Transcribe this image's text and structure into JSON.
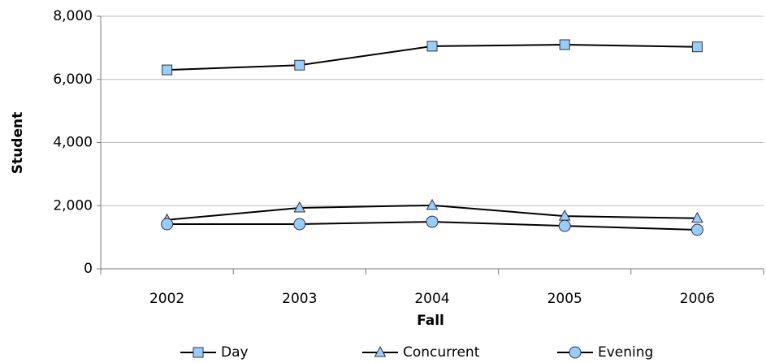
{
  "chart_data": {
    "type": "line",
    "x_label": "Fall",
    "y_label": "Student",
    "categories": [
      "2002",
      "2003",
      "2004",
      "2005",
      "2006"
    ],
    "series": [
      {
        "name": "Day",
        "color": "#99ccff",
        "marker": "square",
        "values": [
          6300,
          6450,
          7050,
          7100,
          7030
        ]
      },
      {
        "name": "Concurrent",
        "color": "#99ccff",
        "marker": "triangle",
        "values": [
          1550,
          1930,
          2010,
          1670,
          1600
        ]
      },
      {
        "name": "Evening",
        "color": "#99ccff",
        "marker": "circle",
        "values": [
          1415,
          1415,
          1490,
          1360,
          1235
        ]
      }
    ],
    "ylim": [
      0,
      8000
    ],
    "yticks": [
      0,
      {
        "value": 2000,
        "label": "2,000"
      },
      {
        "value": 4000,
        "label": "4,000"
      },
      {
        "value": 6000,
        "label": "6,000"
      },
      {
        "value": 8000,
        "label": "8,000"
      }
    ],
    "grid": true,
    "legend": "bottom"
  }
}
